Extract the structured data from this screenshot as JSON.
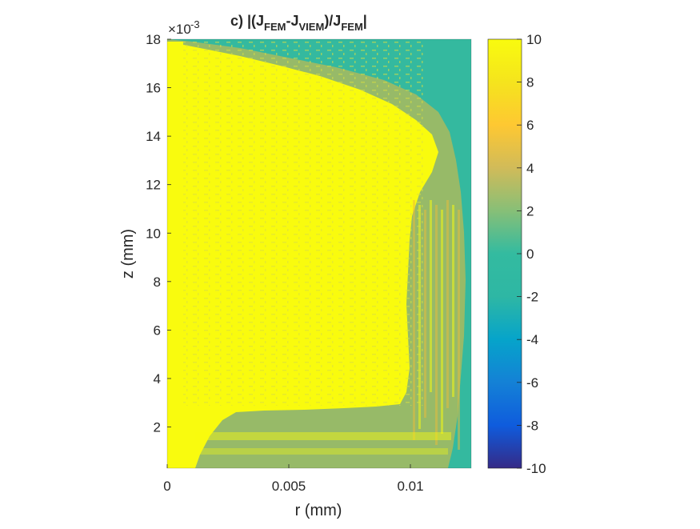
{
  "chart_data": {
    "type": "heatmap",
    "title": "c) |(J",
    "title_sub_fem": "FEM",
    "title_dash_j": "-J",
    "title_sub_viem": "VIEM",
    "title_mid": ")/J",
    "title_sub_fem2": "FEM",
    "title_end": "|",
    "xlabel": "r (mm)",
    "ylabel": "z (mm)",
    "y_exponent_prefix": "×10",
    "y_exponent_power": "-3",
    "xlim": [
      0,
      0.0125
    ],
    "ylim": [
      0.0003,
      0.018
    ],
    "x_ticks": [
      0,
      0.005,
      0.01
    ],
    "x_tick_labels": [
      "0",
      "0.005",
      "0.01"
    ],
    "y_ticks": [
      2,
      4,
      6,
      8,
      10,
      12,
      14,
      16,
      18
    ],
    "y_tick_labels": [
      "2",
      "4",
      "6",
      "8",
      "10",
      "12",
      "14",
      "16",
      "18"
    ],
    "colorbar": {
      "range": [
        -10,
        10
      ],
      "ticks": [
        10,
        8,
        6,
        4,
        2,
        0,
        -2,
        -4,
        -6,
        -8,
        -10
      ],
      "tick_labels": [
        "10",
        "8",
        "6",
        "4",
        "2",
        "0",
        "-2",
        "-4",
        "-6",
        "-8",
        "-10"
      ],
      "colormap": "parula"
    },
    "regions": {
      "saturated_value": 10,
      "background_value": 0.5
    },
    "colors": {
      "saturated": "#f9fb0e",
      "background": "#34b99f",
      "transition": "#e9bb3a"
    },
    "grid": false
  }
}
